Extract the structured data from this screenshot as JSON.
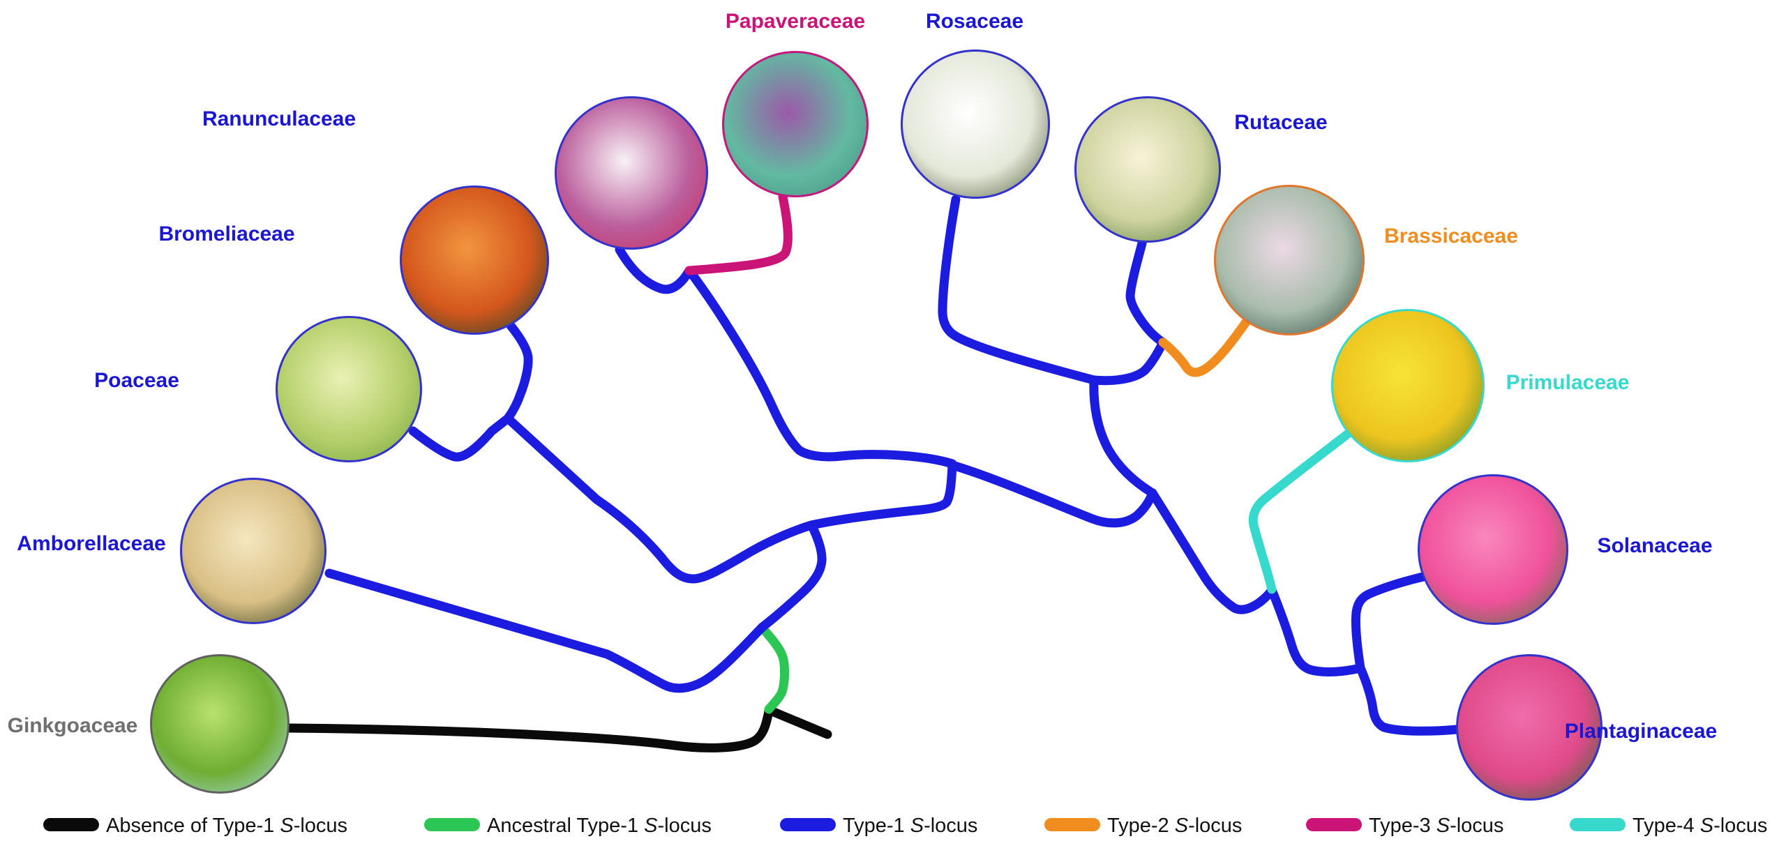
{
  "figure": {
    "type": "phylogenetic-tree",
    "title": "",
    "families": [
      {
        "id": "ginkgoaceae",
        "label": "Ginkgoaceae",
        "label_color_key": "gray_label",
        "border_color_key": "border_gray",
        "branch_type": "Absence of Type-1 S-locus",
        "photo_icon": "ginkgo-foliage-photo",
        "photo_colors": [
          "#b9e16e",
          "#6fae33",
          "#a9d9ea"
        ]
      },
      {
        "id": "amborellaceae",
        "label": "Amborellaceae",
        "label_color_key": "label_blue",
        "border_color_key": "border_blue",
        "branch_type": "Type-1 S-locus",
        "photo_icon": "amborella-cream-flowers-photo",
        "photo_colors": [
          "#f5e7c0",
          "#d9bf85",
          "#2a3b1a"
        ]
      },
      {
        "id": "poaceae",
        "label": "Poaceae",
        "label_color_key": "label_blue",
        "border_color_key": "border_blue",
        "branch_type": "Type-1 S-locus",
        "photo_icon": "grass-spikelets-photo",
        "photo_colors": [
          "#eaf1b4",
          "#b5cf6b",
          "#74a43e"
        ]
      },
      {
        "id": "bromeliaceae",
        "label": "Bromeliaceae",
        "label_color_key": "label_blue",
        "border_color_key": "border_blue",
        "branch_type": "Type-1 S-locus",
        "photo_icon": "orange-bromeliad-photo",
        "photo_colors": [
          "#f2953f",
          "#d4571d",
          "#14402a"
        ]
      },
      {
        "id": "ranunculaceae",
        "label": "Ranunculaceae",
        "label_color_key": "label_blue",
        "border_color_key": "border_blue",
        "branch_type": "Type-1 S-locus",
        "photo_icon": "columbine-flower-photo",
        "photo_colors": [
          "#f9f1f5",
          "#bb5f9d",
          "#c9275c"
        ]
      },
      {
        "id": "papaveraceae",
        "label": "Papaveraceae",
        "label_color_key": "magenta",
        "border_color_key": "border_magenta",
        "branch_type": "Type-3 S-locus",
        "photo_icon": "purple-poppy-photo",
        "photo_colors": [
          "#9b59a8",
          "#63b9a2",
          "#41917c"
        ]
      },
      {
        "id": "rosaceae",
        "label": "Rosaceae",
        "label_color_key": "label_blue",
        "border_color_key": "border_blue",
        "branch_type": "Type-1 S-locus",
        "photo_icon": "white-pear-blossom-photo",
        "photo_colors": [
          "#ffffff",
          "#e4e8d9",
          "#45522e"
        ]
      },
      {
        "id": "rutaceae",
        "label": "Rutaceae",
        "label_color_key": "label_blue",
        "border_color_key": "border_blue",
        "branch_type": "Type-1 S-locus",
        "photo_icon": "citrus-blossom-photo",
        "photo_colors": [
          "#f7f3d8",
          "#cfd3a0",
          "#4f7c35"
        ]
      },
      {
        "id": "brassicaceae",
        "label": "Brassicaceae",
        "label_color_key": "orange",
        "border_color_key": "border_orange",
        "branch_type": "Type-2 S-locus",
        "photo_icon": "pale-crucifer-flower-photo",
        "photo_colors": [
          "#ecd9e6",
          "#a9bcab",
          "#29473d"
        ]
      },
      {
        "id": "primulaceae",
        "label": "Primulaceae",
        "label_color_key": "cyan",
        "border_color_key": "border_cyan",
        "branch_type": "Type-4 S-locus",
        "photo_icon": "yellow-primrose-photo",
        "photo_colors": [
          "#f7e437",
          "#edc51f",
          "#3f7c2b"
        ]
      },
      {
        "id": "solanaceae",
        "label": "Solanaceae",
        "label_color_key": "label_blue",
        "border_color_key": "border_blue",
        "branch_type": "Type-1 S-locus",
        "photo_icon": "pink-petunia-photo",
        "photo_colors": [
          "#f987bd",
          "#f0519b",
          "#3c7c33"
        ]
      },
      {
        "id": "plantaginaceae",
        "label": "Plantaginaceae",
        "label_color_key": "label_blue",
        "border_color_key": "border_blue",
        "branch_type": "Type-1 S-locus",
        "photo_icon": "pink-snapdragon-photo",
        "photo_colors": [
          "#f06cab",
          "#e04a8a",
          "#2e6b2e"
        ]
      }
    ],
    "legend": [
      {
        "pre": "Absence of Type-1 ",
        "it": "S",
        "post": "-locus",
        "color_key": "black"
      },
      {
        "pre": "Ancestral Type-1 ",
        "it": "S",
        "post": "-locus",
        "color_key": "green"
      },
      {
        "pre": "Type-1 ",
        "it": "S",
        "post": "-locus",
        "color_key": "blue"
      },
      {
        "pre": "Type-2 ",
        "it": "S",
        "post": "-locus",
        "color_key": "orange"
      },
      {
        "pre": "Type-3 ",
        "it": "S",
        "post": "-locus",
        "color_key": "magenta"
      },
      {
        "pre": "Type-4 ",
        "it": "S",
        "post": "-locus",
        "color_key": "cyan"
      }
    ],
    "colors": {
      "blue": "#1c1ce0",
      "green": "#2bc653",
      "black": "#0a0a0a",
      "orange": "#f18c1f",
      "magenta": "#cb1478",
      "cyan": "#38d9cd",
      "gray_label": "#6f6f6f",
      "label_blue": "#1b16d2",
      "border_blue": "#3333cc",
      "border_gray": "#606060",
      "border_magenta": "#c3197e",
      "border_orange": "#e0762d",
      "border_cyan": "#38d9cd",
      "legend_text": "#111111",
      "background": "#ffffff"
    }
  }
}
